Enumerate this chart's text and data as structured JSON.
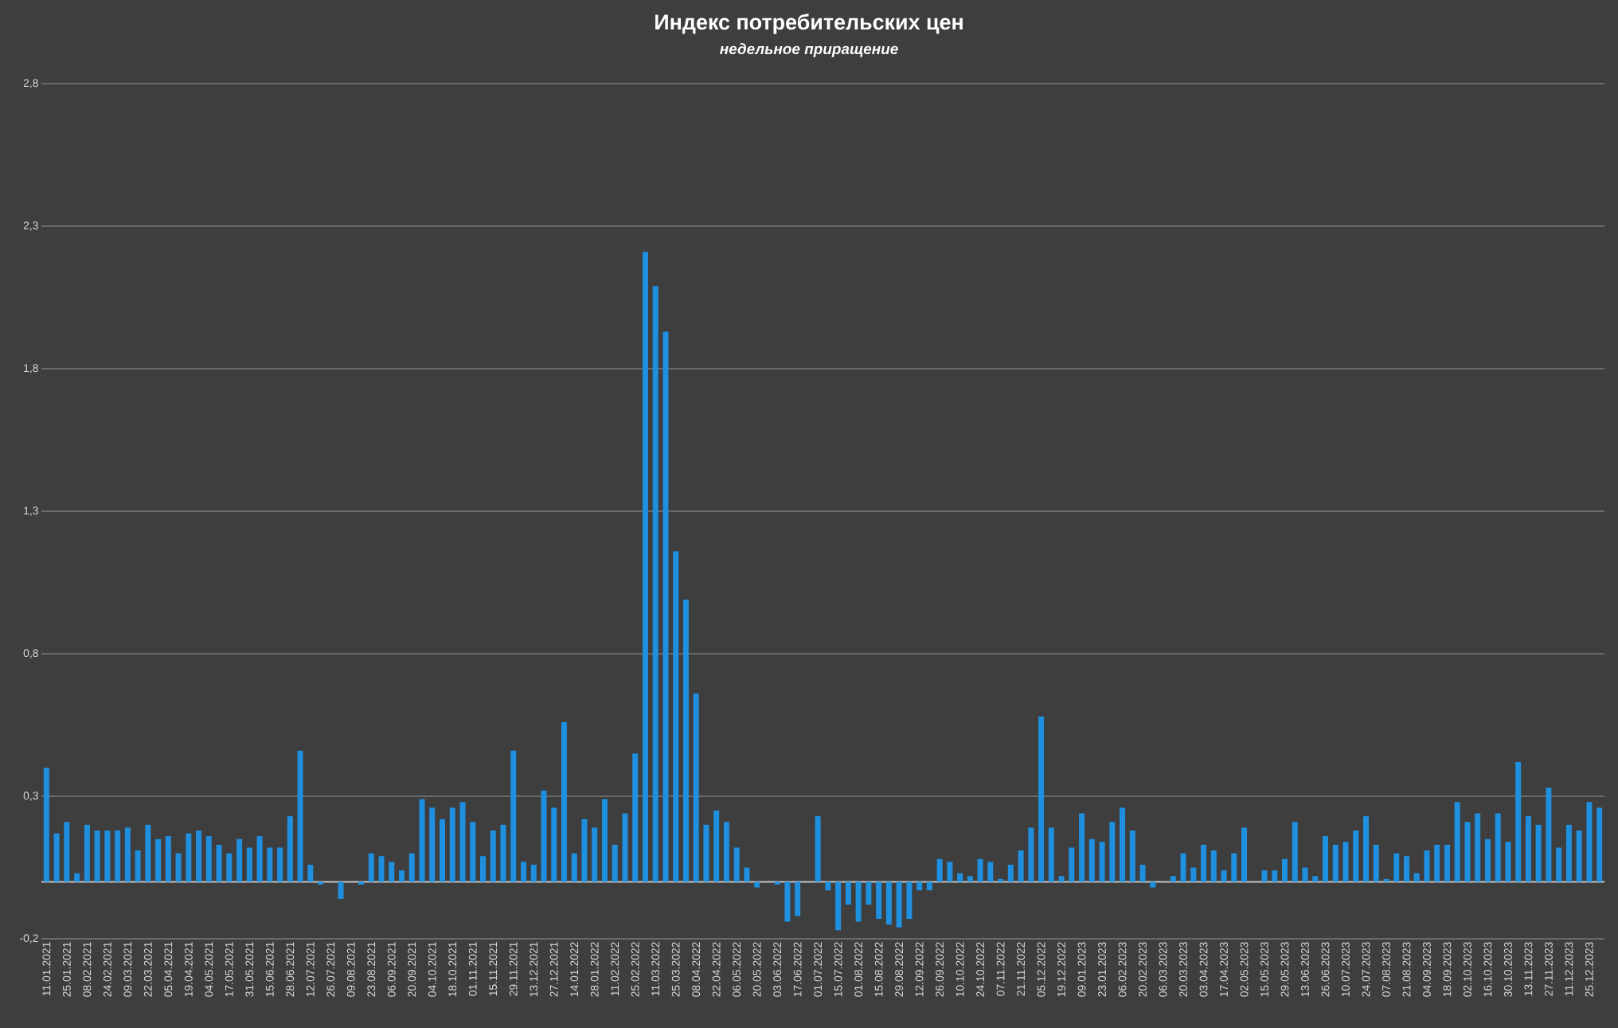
{
  "chart_data": {
    "type": "bar",
    "title": "Индекс потребительских цен",
    "subtitle": "недельное приращение",
    "categories": [
      "11.01.2021",
      null,
      "25.01.2021",
      null,
      "08.02.2021",
      null,
      "24.02.2021",
      null,
      "09.03.2021",
      null,
      "22.03.2021",
      null,
      "05.04.2021",
      null,
      "19.04.2021",
      null,
      "04.05.2021",
      null,
      "17.05.2021",
      null,
      "31.05.2021",
      null,
      "15.06.2021",
      null,
      "28.06.2021",
      null,
      "12.07.2021",
      null,
      "26.07.2021",
      null,
      "09.08.2021",
      null,
      "23.08.2021",
      null,
      "06.09.2021",
      null,
      "20.09.2021",
      null,
      "04.10.2021",
      null,
      "18.10.2021",
      null,
      "01.11.2021",
      null,
      "15.11.2021",
      null,
      "29.11.2021",
      null,
      "13.12.2021",
      null,
      "27.12.2021",
      null,
      "14.01.2022",
      null,
      "28.01.2022",
      null,
      "11.02.2022",
      null,
      "25.02.2022",
      null,
      "11.03.2022",
      null,
      "25.03.2022",
      null,
      "08.04.2022",
      null,
      "22.04.2022",
      null,
      "06.05.2022",
      null,
      "20.05.2022",
      null,
      "03.06.2022",
      null,
      "17.06.2022",
      null,
      "01.07.2022",
      null,
      "15.07.2022",
      null,
      "01.08.2022",
      null,
      "15.08.2022",
      null,
      "29.08.2022",
      null,
      "12.09.2022",
      null,
      "26.09.2022",
      null,
      "10.10.2022",
      null,
      "24.10.2022",
      null,
      "07.11.2022",
      null,
      "21.11.2022",
      null,
      "05.12.2022",
      null,
      "19.12.2022",
      null,
      "09.01.2023",
      null,
      "23.01.2023",
      null,
      "06.02.2023",
      null,
      "20.02.2023",
      null,
      "06.03.2023",
      null,
      "20.03.2023",
      null,
      "03.04.2023",
      null,
      "17.04.2023",
      null,
      "02.05.2023",
      null,
      "15.05.2023",
      null,
      "29.05.2023",
      null,
      "13.06.2023",
      null,
      "26.06.2023",
      null,
      "10.07.2023",
      null,
      "24.07.2023",
      null,
      "07.08.2023",
      null,
      "21.08.2023",
      null,
      "04.09.2023",
      null,
      "18.09.2023",
      null,
      "02.10.2023",
      null,
      "16.10.2023",
      null,
      "30.10.2023",
      null,
      "13.11.2023",
      null,
      "27.11.2023",
      null,
      "11.12.2023",
      null,
      "25.12.2023",
      null
    ],
    "values": [
      0.4,
      0.17,
      0.21,
      0.03,
      0.2,
      0.18,
      0.18,
      0.18,
      0.19,
      0.11,
      0.2,
      0.15,
      0.16,
      0.1,
      0.17,
      0.18,
      0.16,
      0.13,
      0.1,
      0.15,
      0.12,
      0.16,
      0.12,
      0.12,
      0.23,
      0.46,
      0.06,
      -0.01,
      0,
      -0.06,
      0,
      -0.01,
      0.1,
      0.09,
      0.07,
      0.04,
      0.1,
      0.29,
      0.26,
      0.22,
      0.26,
      0.28,
      0.21,
      0.09,
      0.18,
      0.2,
      0.46,
      0.07,
      0.06,
      0.32,
      0.26,
      0.56,
      0.1,
      0.22,
      0.19,
      0.29,
      0.13,
      0.24,
      0.45,
      2.21,
      2.09,
      1.93,
      1.16,
      0.99,
      0.66,
      0.2,
      0.25,
      0.21,
      0.12,
      0.05,
      -0.02,
      0,
      -0.01,
      -0.14,
      -0.12,
      0,
      0.23,
      -0.03,
      -0.17,
      -0.08,
      -0.14,
      -0.08,
      -0.13,
      -0.15,
      -0.16,
      -0.13,
      -0.03,
      -0.03,
      0.08,
      0.07,
      0.03,
      0.02,
      0.08,
      0.07,
      0.01,
      0.06,
      0.11,
      0.19,
      0.58,
      0.19,
      0.02,
      0.12,
      0.24,
      0.15,
      0.14,
      0.21,
      0.26,
      0.18,
      0.06,
      -0.02,
      0,
      0.02,
      0.1,
      0.05,
      0.13,
      0.11,
      0.04,
      0.1,
      0.19,
      0,
      0.04,
      0.04,
      0.08,
      0.21,
      0.05,
      0.02,
      0.16,
      0.13,
      0.14,
      0.18,
      0.23,
      0.13,
      0.01,
      0.1,
      0.09,
      0.03,
      0.11,
      0.13,
      0.13,
      0.28,
      0.21,
      0.24,
      0.15,
      0.24,
      0.14,
      0.42,
      0.23,
      0.2,
      0.33,
      0.12,
      0.2,
      0.18,
      0.28,
      0.26
    ],
    "color": "#1f8fdf",
    "ylim": [
      -0.2,
      2.8
    ],
    "yticks": [
      {
        "value": -0.2,
        "label": "-0,2"
      },
      {
        "value": 0.3,
        "label": "0,3"
      },
      {
        "value": 0.8,
        "label": "0,8"
      },
      {
        "value": 1.3,
        "label": "1,3"
      },
      {
        "value": 1.8,
        "label": "1,8"
      },
      {
        "value": 2.3,
        "label": "2,3"
      },
      {
        "value": 2.8,
        "label": "2,8"
      }
    ],
    "grid": "y"
  }
}
